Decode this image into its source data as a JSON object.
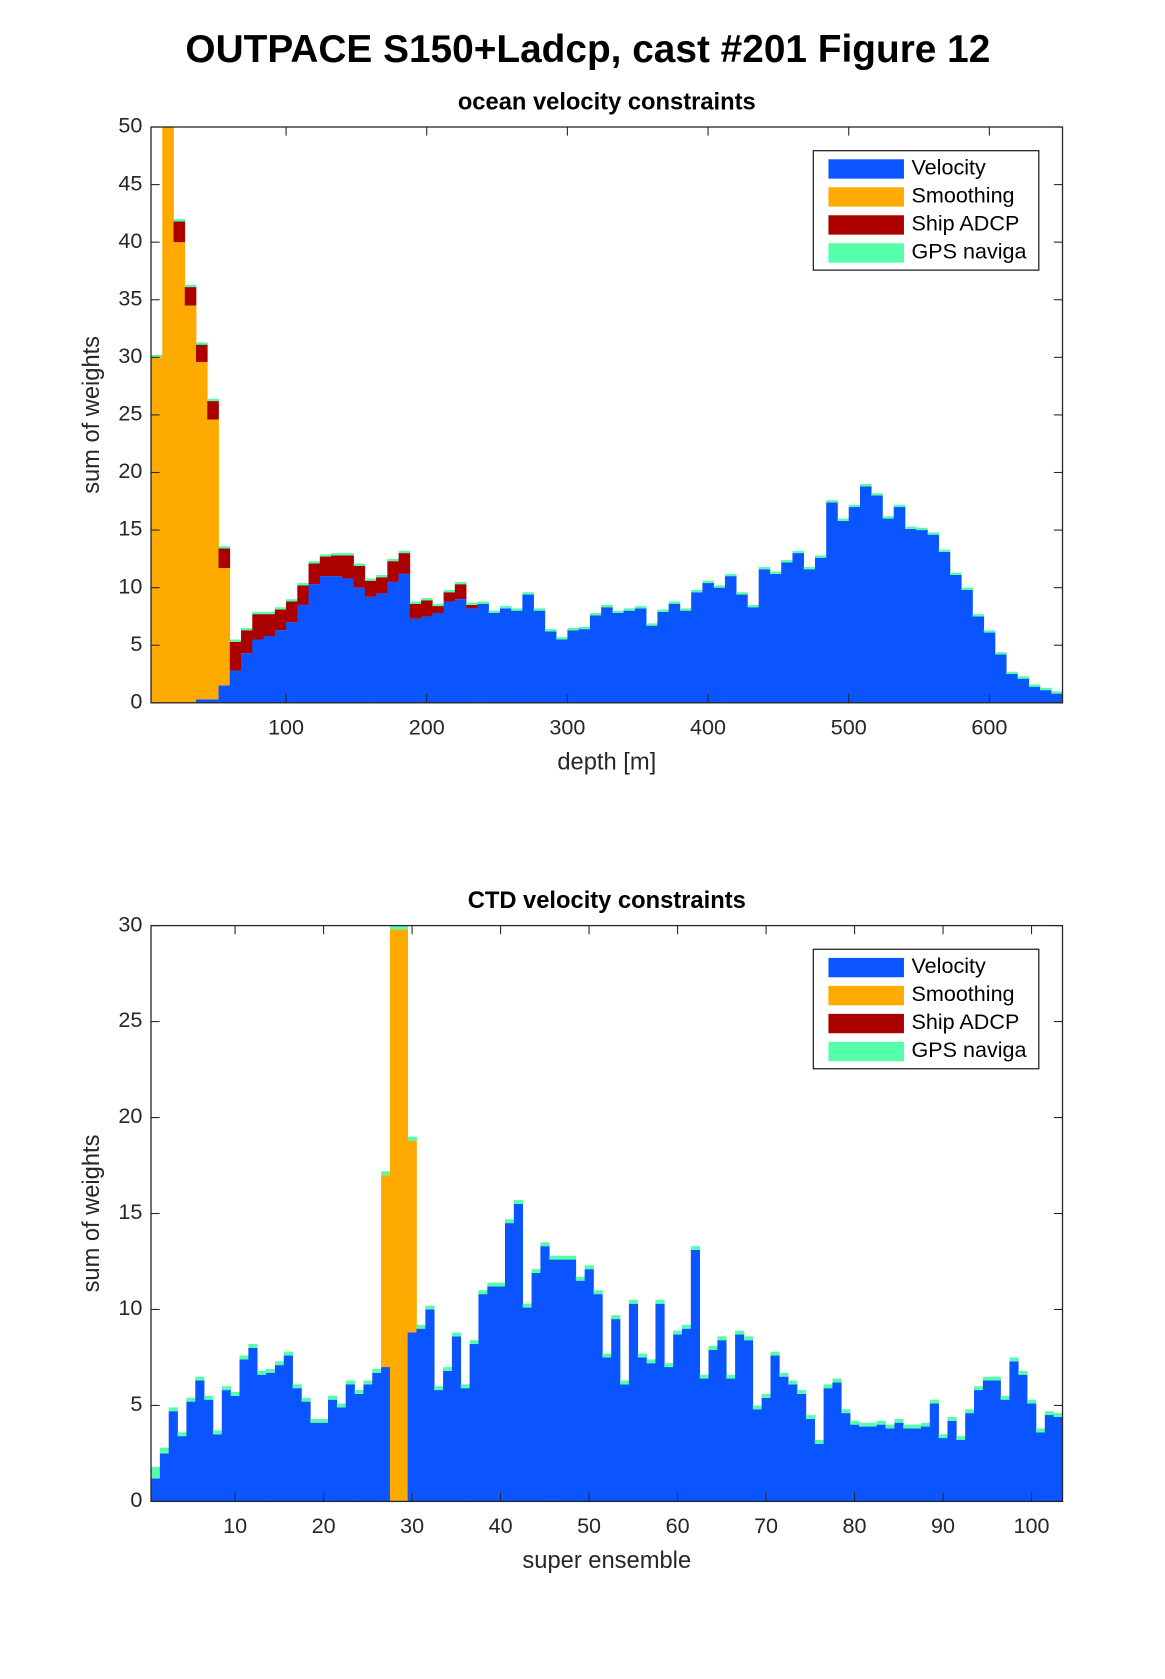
{
  "title": "OUTPACE S150+Ladcp, cast #201  Figure 12",
  "chart_data": [
    {
      "type": "bar",
      "stacked": true,
      "title": "ocean velocity constraints",
      "xlabel": "depth [m]",
      "ylabel": "sum of weights",
      "x": [
        8,
        16,
        24,
        32,
        40,
        48,
        56,
        64,
        72,
        80,
        88,
        96,
        104,
        112,
        120,
        128,
        136,
        144,
        152,
        160,
        168,
        176,
        184,
        192,
        200,
        208,
        216,
        224,
        232,
        240,
        248,
        256,
        264,
        272,
        280,
        288,
        296,
        304,
        312,
        320,
        328,
        336,
        344,
        352,
        360,
        368,
        376,
        384,
        392,
        400,
        408,
        416,
        424,
        432,
        440,
        448,
        456,
        464,
        472,
        480,
        488,
        496,
        504,
        512,
        520,
        528,
        536,
        544,
        552,
        560,
        568,
        576,
        584,
        592,
        600,
        608,
        616,
        624,
        632,
        640,
        648
      ],
      "xlim": [
        4,
        652
      ],
      "ylim": [
        0,
        50
      ],
      "xticks": [
        100,
        200,
        300,
        400,
        500,
        600
      ],
      "yticks": [
        0,
        5,
        10,
        15,
        20,
        25,
        30,
        35,
        40,
        45,
        50
      ],
      "legend": "upper right",
      "series": [
        {
          "name": "Velocity",
          "color": "#0a55ff",
          "values": [
            0,
            0,
            0,
            0,
            0.3,
            0.3,
            1.5,
            2.8,
            4.3,
            5.5,
            5.8,
            6.3,
            7,
            8.5,
            10.3,
            11,
            11,
            10.8,
            10,
            9.2,
            9.5,
            10.5,
            11.2,
            7.3,
            7.5,
            7.8,
            8.8,
            9,
            8.2,
            8.6,
            7.8,
            8.2,
            8,
            9.4,
            8,
            6.2,
            5.5,
            6.3,
            6.4,
            7.6,
            8.3,
            7.8,
            8,
            8.2,
            6.7,
            7.9,
            8.6,
            8,
            9.6,
            10.4,
            10,
            11,
            9.4,
            8.3,
            11.6,
            11.2,
            12.2,
            13,
            11.6,
            12.6,
            17.4,
            15.8,
            17,
            18.8,
            18,
            16,
            17,
            15.1,
            15,
            14.6,
            13.1,
            11.1,
            9.8,
            7.5,
            6.1,
            4.2,
            2.5,
            2.1,
            1.4,
            1.1,
            0.8
          ]
        },
        {
          "name": "Smoothing",
          "color": "#ffaa00",
          "values": [
            30,
            50,
            40,
            34.5,
            29.3,
            24.3,
            10.2,
            0,
            0,
            0,
            0,
            0,
            0,
            0,
            0,
            0,
            0,
            0,
            0,
            0,
            0,
            0,
            0,
            0,
            0,
            0,
            0,
            0,
            0,
            0,
            0,
            0,
            0,
            0,
            0,
            0,
            0,
            0,
            0,
            0,
            0,
            0,
            0,
            0,
            0,
            0,
            0,
            0,
            0,
            0,
            0,
            0,
            0,
            0,
            0,
            0,
            0,
            0,
            0,
            0,
            0,
            0,
            0,
            0,
            0,
            0,
            0,
            0,
            0,
            0,
            0,
            0,
            0,
            0,
            0,
            0,
            0,
            0,
            0,
            0,
            0
          ]
        },
        {
          "name": "Ship ADCP",
          "color": "#aa0000",
          "values": [
            0,
            0,
            1.8,
            1.6,
            1.5,
            1.6,
            1.7,
            2.5,
            2,
            2.2,
            1.9,
            1.8,
            1.8,
            1.7,
            1.8,
            1.7,
            1.8,
            2,
            1.9,
            1.4,
            1.4,
            1.8,
            1.8,
            1.3,
            1.4,
            0.6,
            0.8,
            1.3,
            0.3,
            0,
            0,
            0,
            0,
            0,
            0,
            0,
            0,
            0,
            0,
            0,
            0,
            0,
            0,
            0,
            0,
            0,
            0,
            0,
            0,
            0,
            0,
            0,
            0,
            0,
            0,
            0,
            0,
            0,
            0,
            0,
            0,
            0,
            0,
            0,
            0,
            0,
            0,
            0,
            0,
            0,
            0,
            0,
            0,
            0,
            0,
            0,
            0,
            0,
            0,
            0,
            0
          ]
        },
        {
          "name": "GPS naviga",
          "color": "#55ffaa",
          "values": [
            0.2,
            0.2,
            0.2,
            0.2,
            0.2,
            0.2,
            0.2,
            0.2,
            0.2,
            0.2,
            0.2,
            0.2,
            0.2,
            0.2,
            0.2,
            0.2,
            0.2,
            0.2,
            0.2,
            0.2,
            0.2,
            0.2,
            0.2,
            0.2,
            0.2,
            0.2,
            0.2,
            0.2,
            0.2,
            0.2,
            0.2,
            0.2,
            0.2,
            0.2,
            0.2,
            0.2,
            0.2,
            0.2,
            0.2,
            0.2,
            0.2,
            0.2,
            0.2,
            0.2,
            0.2,
            0.2,
            0.2,
            0.2,
            0.2,
            0.2,
            0.2,
            0.2,
            0.2,
            0.2,
            0.2,
            0.2,
            0.2,
            0.2,
            0.2,
            0.2,
            0.2,
            0.2,
            0.2,
            0.2,
            0.2,
            0.2,
            0.2,
            0.2,
            0.2,
            0.2,
            0.2,
            0.2,
            0.2,
            0.2,
            0.2,
            0.2,
            0.2,
            0.2,
            0.2,
            0.2,
            0.2
          ]
        }
      ]
    },
    {
      "type": "bar",
      "stacked": true,
      "title": "CTD velocity constraints",
      "xlabel": "super ensemble",
      "ylabel": "sum of weights",
      "x": [
        1,
        2,
        3,
        4,
        5,
        6,
        7,
        8,
        9,
        10,
        11,
        12,
        13,
        14,
        15,
        16,
        17,
        18,
        19,
        20,
        21,
        22,
        23,
        24,
        25,
        26,
        27,
        28,
        29,
        30,
        31,
        32,
        33,
        34,
        35,
        36,
        37,
        38,
        39,
        40,
        41,
        42,
        43,
        44,
        45,
        46,
        47,
        48,
        49,
        50,
        51,
        52,
        53,
        54,
        55,
        56,
        57,
        58,
        59,
        60,
        61,
        62,
        63,
        64,
        65,
        66,
        67,
        68,
        69,
        70,
        71,
        72,
        73,
        74,
        75,
        76,
        77,
        78,
        79,
        80,
        81,
        82,
        83,
        84,
        85,
        86,
        87,
        88,
        89,
        90,
        91,
        92,
        93,
        94,
        95,
        96,
        97,
        98,
        99,
        100,
        101,
        102,
        103
      ],
      "xlim": [
        0.5,
        103.5
      ],
      "ylim": [
        0,
        30
      ],
      "xticks": [
        10,
        20,
        30,
        40,
        50,
        60,
        70,
        80,
        90,
        100
      ],
      "yticks": [
        0,
        5,
        10,
        15,
        20,
        25,
        30
      ],
      "legend": "upper right",
      "series": [
        {
          "name": "Velocity",
          "color": "#0a55ff",
          "values": [
            1.2,
            2.5,
            4.7,
            3.4,
            5.2,
            6.3,
            5.3,
            3.5,
            5.8,
            5.5,
            7.4,
            8,
            6.6,
            6.7,
            7.1,
            7.6,
            5.9,
            5.2,
            4.1,
            4.1,
            5.3,
            4.9,
            6.1,
            5.6,
            6.1,
            6.7,
            7,
            0,
            0,
            8.8,
            9,
            10,
            5.8,
            6.8,
            8.6,
            5.9,
            8.2,
            10.8,
            11.2,
            11.2,
            14.5,
            15.5,
            10.1,
            11.9,
            13.3,
            12.6,
            12.6,
            12.6,
            11.5,
            12.1,
            10.8,
            7.5,
            9.5,
            6.1,
            10.3,
            7.5,
            7.2,
            10.3,
            7,
            8.7,
            9,
            13.1,
            6.4,
            7.9,
            8.4,
            6.4,
            8.7,
            8.4,
            4.8,
            5.4,
            7.6,
            6.5,
            6.1,
            5.6,
            4.3,
            3,
            5.9,
            6.2,
            4.6,
            4,
            3.9,
            3.9,
            4,
            3.8,
            4.1,
            3.8,
            3.8,
            3.9,
            5.1,
            3.3,
            4.2,
            3.2,
            4.6,
            5.8,
            6.3,
            6.3,
            5.3,
            7.3,
            6.6,
            5.1,
            3.6,
            4.5,
            4.4
          ]
        },
        {
          "name": "Smoothing",
          "color": "#ffaa00",
          "values": [
            0,
            0,
            0,
            0,
            0,
            0,
            0,
            0,
            0,
            0,
            0,
            0,
            0,
            0,
            0,
            0,
            0,
            0,
            0,
            0,
            0,
            0,
            0,
            0,
            0,
            0,
            10,
            29.8,
            29.8,
            10,
            0,
            0,
            0,
            0,
            0,
            0,
            0,
            0,
            0,
            0,
            0,
            0,
            0,
            0,
            0,
            0,
            0,
            0,
            0,
            0,
            0,
            0,
            0,
            0,
            0,
            0,
            0,
            0,
            0,
            0,
            0,
            0,
            0,
            0,
            0,
            0,
            0,
            0,
            0,
            0,
            0,
            0,
            0,
            0,
            0,
            0,
            0,
            0,
            0,
            0,
            0,
            0,
            0,
            0,
            0,
            0,
            0,
            0,
            0,
            0,
            0,
            0,
            0,
            0,
            0,
            0,
            0,
            0,
            0,
            0,
            0,
            0,
            0
          ]
        },
        {
          "name": "Ship ADCP",
          "color": "#aa0000",
          "values": [
            0,
            0,
            0,
            0,
            0,
            0,
            0,
            0,
            0,
            0,
            0,
            0,
            0,
            0,
            0,
            0,
            0,
            0,
            0,
            0,
            0,
            0,
            0,
            0,
            0,
            0,
            0,
            0,
            0,
            0,
            0,
            0,
            0,
            0,
            0,
            0,
            0,
            0,
            0,
            0,
            0,
            0,
            0,
            0,
            0,
            0,
            0,
            0,
            0,
            0,
            0,
            0,
            0,
            0,
            0,
            0,
            0,
            0,
            0,
            0,
            0,
            0,
            0,
            0,
            0,
            0,
            0,
            0,
            0,
            0,
            0,
            0,
            0,
            0,
            0,
            0,
            0,
            0,
            0,
            0,
            0,
            0,
            0,
            0,
            0,
            0,
            0,
            0,
            0,
            0,
            0,
            0,
            0,
            0,
            0,
            0,
            0,
            0,
            0,
            0,
            0,
            0,
            0
          ]
        },
        {
          "name": "GPS naviga",
          "color": "#55ffaa",
          "values": [
            0.6,
            0.3,
            0.2,
            0.2,
            0.2,
            0.2,
            0.2,
            0.2,
            0.2,
            0.2,
            0.2,
            0.2,
            0.2,
            0.2,
            0.2,
            0.2,
            0.2,
            0.2,
            0.2,
            0.2,
            0.2,
            0.2,
            0.2,
            0.2,
            0.2,
            0.2,
            0.2,
            0.2,
            0.2,
            0.2,
            0.2,
            0.2,
            0.2,
            0.2,
            0.2,
            0.2,
            0.2,
            0.2,
            0.2,
            0.2,
            0.2,
            0.2,
            0.2,
            0.2,
            0.2,
            0.2,
            0.2,
            0.2,
            0.2,
            0.2,
            0.2,
            0.2,
            0.2,
            0.2,
            0.2,
            0.2,
            0.2,
            0.2,
            0.2,
            0.2,
            0.2,
            0.2,
            0.2,
            0.2,
            0.2,
            0.2,
            0.2,
            0.2,
            0.2,
            0.2,
            0.2,
            0.2,
            0.2,
            0.2,
            0.2,
            0.2,
            0.2,
            0.2,
            0.2,
            0.2,
            0.2,
            0.2,
            0.2,
            0.2,
            0.2,
            0.2,
            0.2,
            0.2,
            0.2,
            0.2,
            0.2,
            0.2,
            0.2,
            0.2,
            0.2,
            0.2,
            0.2,
            0.2,
            0.2,
            0.2,
            0.2,
            0.2,
            0.2
          ]
        }
      ]
    }
  ]
}
